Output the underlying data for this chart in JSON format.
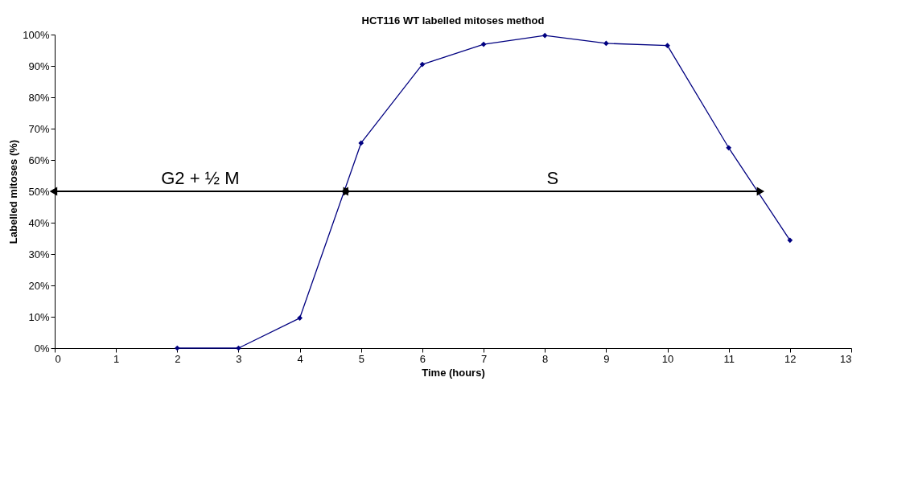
{
  "chart_data": {
    "type": "line",
    "title": "HCT116 WT labelled mitoses method",
    "xlabel": "Time (hours)",
    "ylabel": "Labelled mitoses (%)",
    "xlim": [
      0,
      13
    ],
    "xticks": [
      0,
      1,
      2,
      3,
      4,
      5,
      6,
      7,
      8,
      9,
      10,
      11,
      12,
      13
    ],
    "ylim": [
      0,
      100
    ],
    "yticks": [
      {
        "value": 0,
        "label": "0%"
      },
      {
        "value": 10,
        "label": "10%"
      },
      {
        "value": 20,
        "label": "20%"
      },
      {
        "value": 30,
        "label": "30%"
      },
      {
        "value": 40,
        "label": "40%"
      },
      {
        "value": 50,
        "label": "50%"
      },
      {
        "value": 60,
        "label": "60%"
      },
      {
        "value": 70,
        "label": "70%"
      },
      {
        "value": 80,
        "label": "80%"
      },
      {
        "value": 90,
        "label": "90%"
      },
      {
        "value": 100,
        "label": "100%"
      }
    ],
    "grid": false,
    "series": [
      {
        "color": "#000080",
        "marker": "diamond",
        "x": [
          2,
          3,
          4,
          5,
          6,
          7,
          8,
          9,
          10,
          11,
          12
        ],
        "values": [
          0,
          0,
          9.6,
          65.4,
          90.5,
          96.9,
          99.7,
          97.2,
          96.5,
          63.9,
          34.4
        ]
      },
      {
        "name": "G2 + ½ M",
        "color": "#000000",
        "marker": "triangle",
        "x": [
          0,
          4.75
        ],
        "values": [
          50,
          50
        ]
      },
      {
        "name": "S",
        "color": "#000000",
        "marker": "triangle",
        "x": [
          4.75,
          11.5
        ],
        "values": [
          50,
          50
        ]
      }
    ]
  }
}
